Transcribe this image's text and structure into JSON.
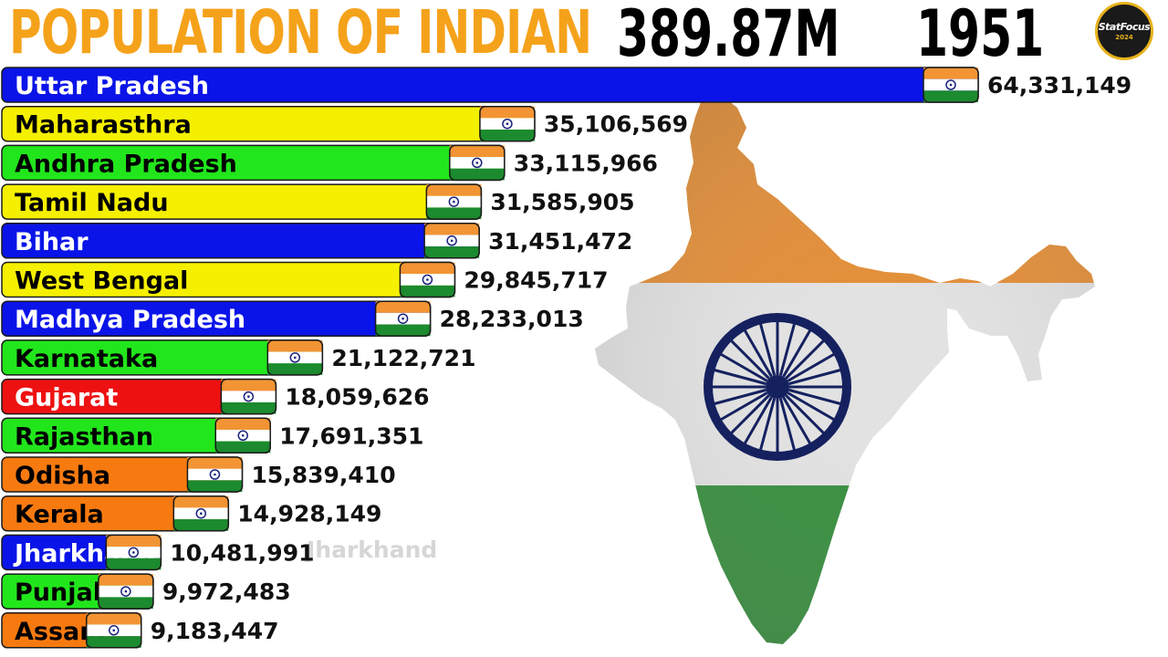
{
  "header": {
    "title": "POPULATION OF INDIAN",
    "total": "389.87M",
    "year": "1951",
    "badge_line1": "StatFocus",
    "badge_line2": "2024"
  },
  "ghost_label": "Jharkhand",
  "chart_data": {
    "type": "bar",
    "orientation": "horizontal",
    "categories": [
      "Uttar Pradesh",
      "Maharasthra",
      "Andhra Pradesh",
      "Tamil Nadu",
      "Bihar",
      "West Bengal",
      "Madhya Pradesh",
      "Karnataka",
      "Gujarat",
      "Rajasthan",
      "Odisha",
      "Kerala",
      "Jharkhand",
      "Punjab",
      "Assam"
    ],
    "values": [
      64331149,
      35106569,
      33115966,
      31585905,
      31451472,
      29845717,
      28233013,
      21122721,
      18059626,
      17691351,
      15839410,
      14928149,
      10481991,
      9972483,
      9183447
    ],
    "value_labels": [
      "64,331,149",
      "35,106,569",
      "33,115,966",
      "31,585,905",
      "31,451,472",
      "29,845,717",
      "28,233,013",
      "21,122,721",
      "18,059,626",
      "17,691,351",
      "15,839,410",
      "14,928,149",
      "10,481,991",
      "9,972,483",
      "9,183,447"
    ],
    "colors": [
      "#0a14e8",
      "#f5f000",
      "#22e61c",
      "#f5f000",
      "#0a14e8",
      "#f5f000",
      "#0a14e8",
      "#22e61c",
      "#ee1111",
      "#22e61c",
      "#f77a10",
      "#f77a10",
      "#0a14e8",
      "#22e61c",
      "#f77a10"
    ],
    "label_colors": [
      "#ffffff",
      "#000000",
      "#000000",
      "#000000",
      "#ffffff",
      "#000000",
      "#ffffff",
      "#000000",
      "#ffffff",
      "#000000",
      "#000000",
      "#000000",
      "#ffffff",
      "#000000",
      "#000000"
    ]
  }
}
